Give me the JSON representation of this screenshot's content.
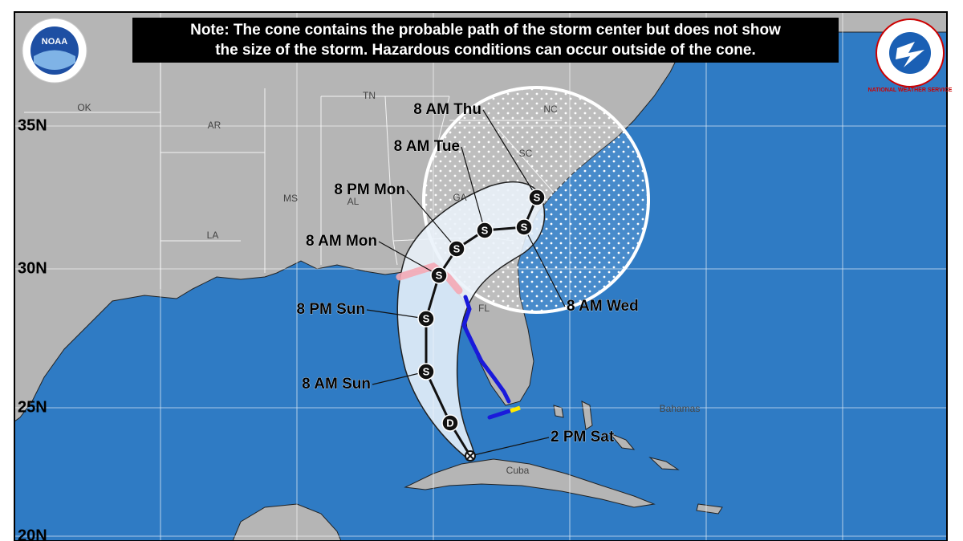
{
  "header": {
    "note": [
      "Note: The cone contains the probable path of the storm center but does not show",
      "the size of the storm. Hazardous conditions can occur outside of the cone."
    ]
  },
  "logos": {
    "left": "NOAA",
    "right": "NATIONAL WEATHER SERVICE"
  },
  "latitude_labels": [
    "35N",
    "30N",
    "25N",
    "20N"
  ],
  "place_labels": [
    "OK",
    "AR",
    "TN",
    "NC",
    "SC",
    "GA",
    "MS",
    "AL",
    "LA",
    "FL",
    "Bahamas",
    "Cuba"
  ],
  "forecast_points": [
    {
      "label": "2 PM Sat",
      "marker": null
    },
    {
      "label": null,
      "marker": "D"
    },
    {
      "label": "8 AM Sun",
      "marker": "S"
    },
    {
      "label": "8 PM Sun",
      "marker": "S"
    },
    {
      "label": "8 AM Mon",
      "marker": "S"
    },
    {
      "label": "8 PM Mon",
      "marker": "S"
    },
    {
      "label": "8 AM Tue",
      "marker": "S"
    },
    {
      "label": "8 AM Wed",
      "marker": "S"
    },
    {
      "label": "8 AM Thu",
      "marker": "S"
    }
  ]
}
